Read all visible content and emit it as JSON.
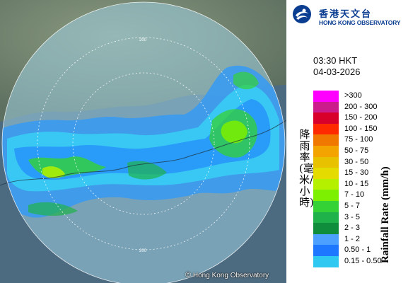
{
  "map": {
    "copyright": "Hong Kong Observatory",
    "copyright_symbol": "©",
    "range_ring_label": "200",
    "colors": {
      "land": "#7a8c72",
      "sea": "#4f6d82",
      "radar_disc": "#9fd0e2",
      "rings": "#ffffff"
    }
  },
  "header": {
    "logo_icon": "hko-logo-icon",
    "name_zh": "香港天文台",
    "name_en": "HONG KONG OBSERVATORY"
  },
  "timestamp": {
    "time": "03:30 HKT",
    "date": "04-03-2026"
  },
  "legend": {
    "title_zh": "降雨率(毫米/小時)",
    "title_en": "Rainfall Rate (mm/h)",
    "items": [
      {
        "label": ">300",
        "color": "#ff00ff"
      },
      {
        "label": "200 - 300",
        "color": "#cc1c8c"
      },
      {
        "label": "150 - 200",
        "color": "#d8002a"
      },
      {
        "label": "100 - 150",
        "color": "#ff2a00"
      },
      {
        "label": "75 - 100",
        "color": "#f07800"
      },
      {
        "label": "50 - 75",
        "color": "#f4a400"
      },
      {
        "label": "30 - 50",
        "color": "#e8c200"
      },
      {
        "label": "15 - 30",
        "color": "#e4dc00"
      },
      {
        "label": "10 - 15",
        "color": "#b4f000"
      },
      {
        "label": "7 - 10",
        "color": "#7cf000"
      },
      {
        "label": "5 - 7",
        "color": "#34d234"
      },
      {
        "label": "3 - 5",
        "color": "#1fb24a"
      },
      {
        "label": "2 - 3",
        "color": "#0f8c3c"
      },
      {
        "label": "1 - 2",
        "color": "#4ca0ff"
      },
      {
        "label": "0.50 - 1",
        "color": "#1e78ff"
      },
      {
        "label": "0.15 - 0.50",
        "color": "#2ec8f0"
      }
    ]
  }
}
